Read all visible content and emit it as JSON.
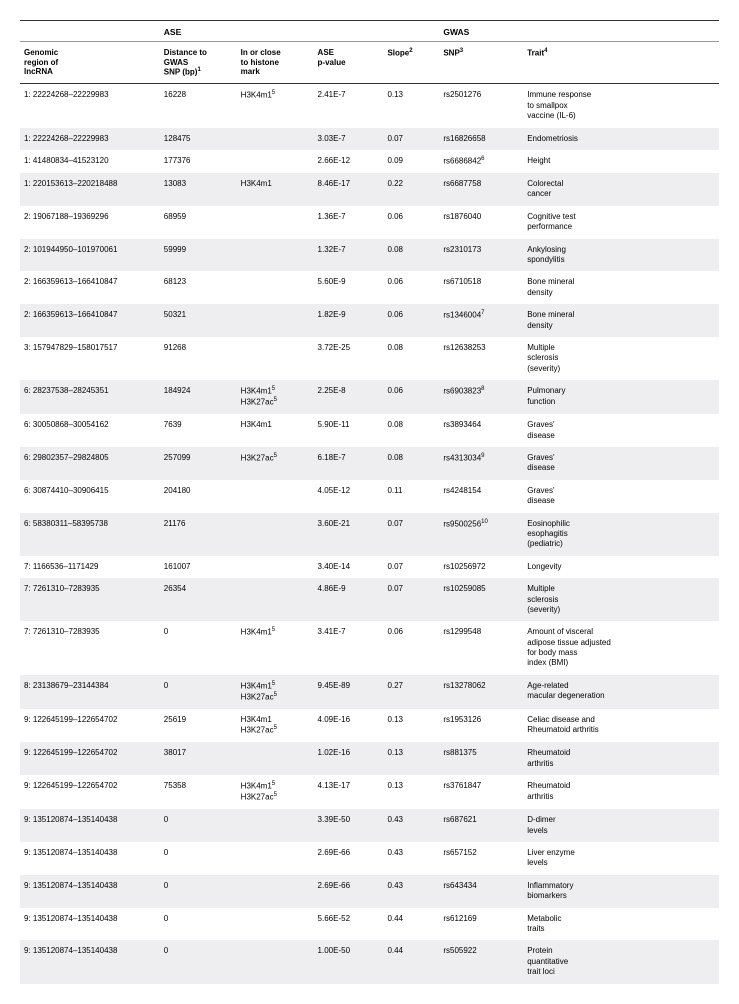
{
  "table": {
    "groupHeaders": {
      "ase": "ASE",
      "gwas": "GWAS"
    },
    "columns": {
      "genomic": "Genomic\nregion of\nlncRNA",
      "distance": "Distance to\nGWAS\nSNP (bp)",
      "distanceSup": "1",
      "histone": "In or close\nto histone\nmark",
      "pvalue": "ASE\np-value",
      "slope": "Slope",
      "slopeSup": "2",
      "snp": "SNP",
      "snpSup": "3",
      "trait": "Trait",
      "traitSup": "4"
    },
    "rows": [
      {
        "genomic": "1: 22224268–22229983",
        "distance": "16228",
        "histone": "H3K4m1",
        "histoneSup": "5",
        "pvalue": "2.41E-7",
        "slope": "0.13",
        "snp": "rs2501276",
        "trait": "Immune response\nto smallpox\nvaccine (IL-6)"
      },
      {
        "genomic": "1: 22224268–22229983",
        "distance": "128475",
        "histone": "",
        "pvalue": "3.03E-7",
        "slope": "0.07",
        "snp": "rs16826658",
        "trait": "Endometriosis"
      },
      {
        "genomic": "1: 41480834–41523120",
        "distance": "177376",
        "histone": "",
        "pvalue": "2.66E-12",
        "slope": "0.09",
        "snp": "rs6686842",
        "snpSup": "6",
        "trait": "Height"
      },
      {
        "genomic": "1: 220153613–220218488",
        "distance": "13083",
        "histone": "H3K4m1",
        "pvalue": "8.46E-17",
        "slope": "0.22",
        "snp": "rs6687758",
        "trait": "Colorectal\ncancer"
      },
      {
        "genomic": "2: 19067188–19369296",
        "distance": "68959",
        "histone": "",
        "pvalue": "1.36E-7",
        "slope": "0.06",
        "snp": "rs1876040",
        "trait": "Cognitive test\nperformance"
      },
      {
        "genomic": "2: 101944950–101970061",
        "distance": "59999",
        "histone": "",
        "pvalue": "1.32E-7",
        "slope": "0.08",
        "snp": "rs2310173",
        "trait": "Ankylosing\nspondylitis"
      },
      {
        "genomic": "2: 166359613–166410847",
        "distance": "68123",
        "histone": "",
        "pvalue": "5.60E-9",
        "slope": "0.06",
        "snp": "rs6710518",
        "trait": "Bone mineral\ndensity"
      },
      {
        "genomic": "2: 166359613–166410847",
        "distance": "50321",
        "histone": "",
        "pvalue": "1.82E-9",
        "slope": "0.06",
        "snp": "rs1346004",
        "snpSup": "7",
        "trait": "Bone mineral\ndensity"
      },
      {
        "genomic": "3: 157947829–158017517",
        "distance": "91268",
        "histone": "",
        "pvalue": "3.72E-25",
        "slope": "0.08",
        "snp": "rs12638253",
        "trait": "Multiple\nsclerosis\n(severity)"
      },
      {
        "genomic": "6: 28237538–28245351",
        "distance": "184924",
        "histone": "H3K4m1\nH3K27ac",
        "histoneSup": "5",
        "histoneSup2": "5",
        "pvalue": "2.25E-8",
        "slope": "0.06",
        "snp": "rs6903823",
        "snpSup": "8",
        "trait": "Pulmonary\nfunction"
      },
      {
        "genomic": "6: 30050868–30054162",
        "distance": "7639",
        "histone": "H3K4m1",
        "pvalue": "5.90E-11",
        "slope": "0.08",
        "snp": "rs3893464",
        "trait": "Graves'\ndisease"
      },
      {
        "genomic": "6: 29802357–29824805",
        "distance": "257099",
        "histone": "H3K27ac",
        "histoneSup": "5",
        "pvalue": "6.18E-7",
        "slope": "0.08",
        "snp": "rs4313034",
        "snpSup": "9",
        "trait": "Graves'\ndisease"
      },
      {
        "genomic": "6: 30874410–30906415",
        "distance": "204180",
        "histone": "",
        "pvalue": "4.05E-12",
        "slope": "0.11",
        "snp": "rs4248154",
        "trait": "Graves'\ndisease"
      },
      {
        "genomic": "6: 58380311–58395738",
        "distance": "21176",
        "histone": "",
        "pvalue": "3.60E-21",
        "slope": "0.07",
        "snp": "rs9500256",
        "snpSup": "10",
        "trait": "Eosinophilic\nesophagitis\n(pediatric)"
      },
      {
        "genomic": "7: 1166536–1171429",
        "distance": "161007",
        "histone": "",
        "pvalue": "3.40E-14",
        "slope": "0.07",
        "snp": "rs10256972",
        "trait": "Longevity"
      },
      {
        "genomic": "7: 7261310–7283935",
        "distance": "26354",
        "histone": "",
        "pvalue": "4.86E-9",
        "slope": "0.07",
        "snp": "rs10259085",
        "trait": "Multiple\nsclerosis\n(severity)"
      },
      {
        "genomic": "7: 7261310–7283935",
        "distance": "0",
        "histone": "H3K4m1",
        "histoneSup": "5",
        "pvalue": "3.41E-7",
        "slope": "0.06",
        "snp": "rs1299548",
        "trait": "Amount of visceral\nadipose tissue adjusted\nfor body mass\nindex (BMI)"
      },
      {
        "genomic": "8: 23138679–23144384",
        "distance": "0",
        "histone": "H3K4m1\nH3K27ac",
        "histoneSup": "5",
        "histoneSup2": "5",
        "pvalue": "9.45E-89",
        "slope": "0.27",
        "snp": "rs13278062",
        "trait": "Age-related\nmacular degeneration"
      },
      {
        "genomic": "9: 122645199–122654702",
        "distance": "25619",
        "histone": "H3K4m1\nH3K27ac",
        "histoneSup2": "5",
        "pvalue": "4.09E-16",
        "slope": "0.13",
        "snp": "rs1953126",
        "trait": "Celiac disease and\nRheumatoid arthritis"
      },
      {
        "genomic": "9: 122645199–122654702",
        "distance": "38017",
        "histone": "",
        "pvalue": "1.02E-16",
        "slope": "0.13",
        "snp": "rs881375",
        "trait": "Rheumatoid\narthritis"
      },
      {
        "genomic": "9: 122645199–122654702",
        "distance": "75358",
        "histone": "H3K4m1\nH3K27ac",
        "histoneSup": "5",
        "histoneSup2": "5",
        "pvalue": "4.13E-17",
        "slope": "0.13",
        "snp": "rs3761847",
        "trait": "Rheumatoid\narthritis"
      },
      {
        "genomic": "9: 135120874–135140438",
        "distance": "0",
        "histone": "",
        "pvalue": "3.39E-50",
        "slope": "0.43",
        "snp": "rs687621",
        "trait": "D-dimer\nlevels"
      },
      {
        "genomic": "9: 135120874–135140438",
        "distance": "0",
        "histone": "",
        "pvalue": "2.69E-66",
        "slope": "0.43",
        "snp": "rs657152",
        "trait": "Liver enzyme\nlevels"
      },
      {
        "genomic": "9: 135120874–135140438",
        "distance": "0",
        "histone": "",
        "pvalue": "2.69E-66",
        "slope": "0.43",
        "snp": "rs643434",
        "trait": "Inflammatory\nbiomarkers"
      },
      {
        "genomic": "9: 135120874–135140438",
        "distance": "0",
        "histone": "",
        "pvalue": "5.66E-52",
        "slope": "0.44",
        "snp": "rs612169",
        "trait": "Metabolic\ntraits"
      },
      {
        "genomic": "9: 135120874–135140438",
        "distance": "0",
        "histone": "",
        "pvalue": "1.00E-50",
        "slope": "0.44",
        "snp": "rs505922",
        "trait": "Protein\nquantitative\ntrait loci"
      }
    ]
  }
}
